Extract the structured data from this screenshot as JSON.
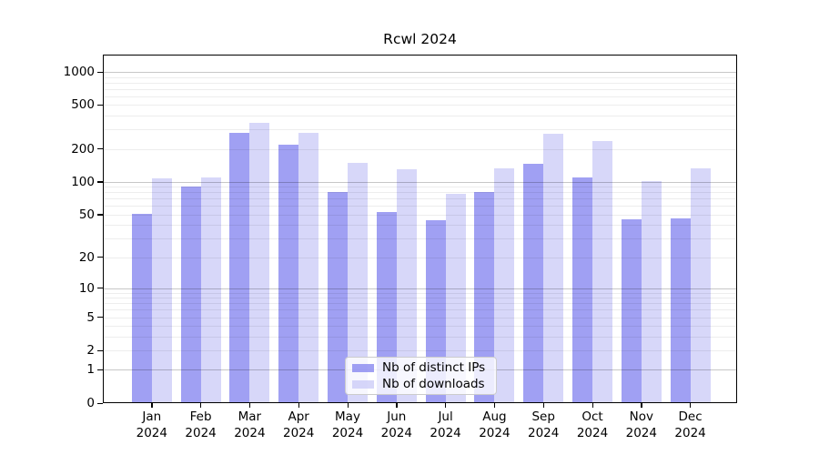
{
  "chart_data": {
    "type": "bar",
    "title": "Rcwl 2024",
    "categories": [
      "Jan 2024",
      "Feb 2024",
      "Mar 2024",
      "Apr 2024",
      "May 2024",
      "Jun 2024",
      "Jul 2024",
      "Aug 2024",
      "Sep 2024",
      "Oct 2024",
      "Nov 2024",
      "Dec 2024"
    ],
    "series": [
      {
        "name": "Nb of distinct IPs",
        "key": "ips",
        "values": [
          51,
          90,
          280,
          220,
          80,
          53,
          44,
          80,
          147,
          110,
          45,
          46
        ]
      },
      {
        "name": "Nb of downloads",
        "key": "downloads",
        "values": [
          108,
          110,
          345,
          280,
          150,
          130,
          77,
          132,
          275,
          235,
          102,
          133
        ]
      }
    ],
    "yscale": "log10(1+x)",
    "yticks": [
      0,
      1,
      2,
      5,
      10,
      20,
      50,
      100,
      200,
      500,
      1000
    ],
    "ylim": [
      0,
      1434
    ],
    "grid": "on",
    "legend_position": "lower center"
  },
  "colors": {
    "bar_ips": "rgba(124,124,238,0.72)",
    "bar_downloads": "rgba(199,199,246,0.72)",
    "grid_decade": "rgba(0,0,0,0.22)",
    "grid_minor": "rgba(0,0,0,0.07)",
    "axis": "#000000",
    "legend_border": "#cccccc",
    "background": "#ffffff"
  }
}
